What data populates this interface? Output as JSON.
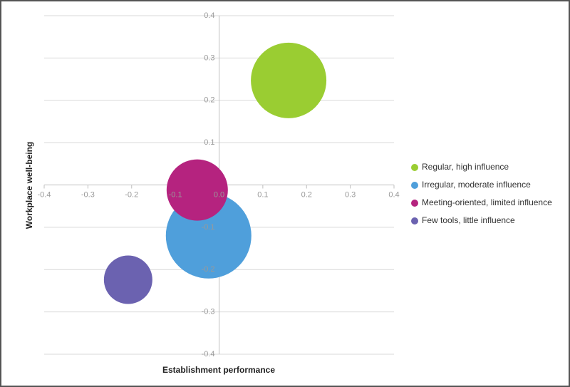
{
  "chart_data": {
    "type": "bubble",
    "x_label": "Establishment performance",
    "y_label": "Workplace well-being",
    "xlim": [
      -0.4,
      0.4
    ],
    "ylim": [
      -0.4,
      0.4
    ],
    "xticks": [
      -0.4,
      -0.3,
      -0.2,
      -0.1,
      {
        "value": 0,
        "label": "0.0"
      },
      0.1,
      0.2,
      0.3,
      0.4
    ],
    "yticks": [
      -0.4,
      -0.3,
      -0.2,
      -0.1,
      0.1,
      0.2,
      0.3,
      0.4
    ],
    "grid": true,
    "legend": "right",
    "series": [
      {
        "name": "Regular, high influence",
        "color": "#9acd32",
        "x": [
          0.159
        ],
        "y": [
          0.247
        ],
        "size": [
          53
        ]
      },
      {
        "name": "Irregular, moderate influence",
        "color": "#4f9fdb",
        "x": [
          -0.024
        ],
        "y": [
          -0.12
        ],
        "size": [
          60
        ]
      },
      {
        "name": "Meeting-oriented, limited influence",
        "color": "#b5237f",
        "x": [
          -0.05
        ],
        "y": [
          -0.012
        ],
        "size": [
          43
        ]
      },
      {
        "name": "Few tools, little influence",
        "color": "#6b62b0",
        "x": [
          -0.208
        ],
        "y": [
          -0.224
        ],
        "size": [
          34
        ]
      }
    ]
  }
}
